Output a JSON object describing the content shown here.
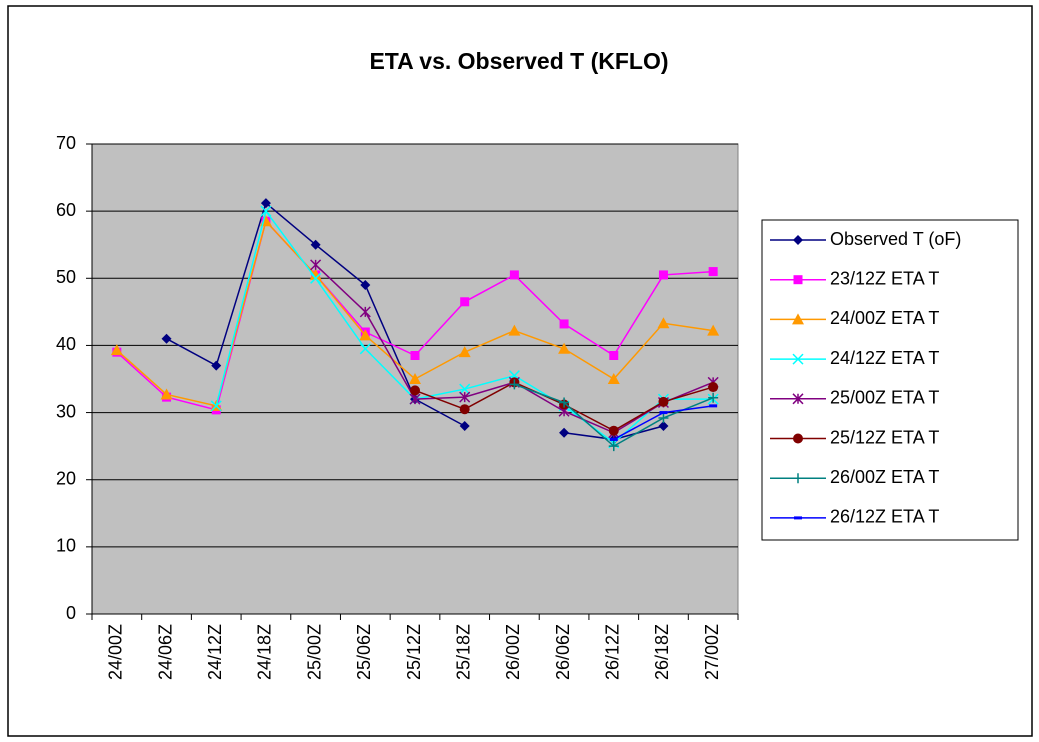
{
  "chart_data": {
    "type": "line",
    "title": "ETA vs. Observed T (KFLO)",
    "categories": [
      "24/00Z",
      "24/06Z",
      "24/12Z",
      "24/18Z",
      "25/00Z",
      "25/06Z",
      "25/12Z",
      "25/18Z",
      "26/00Z",
      "26/06Z",
      "26/12Z",
      "26/18Z",
      "27/00Z"
    ],
    "ylim": [
      0,
      70
    ],
    "yticks": [
      0,
      10,
      20,
      30,
      40,
      50,
      60,
      70
    ],
    "grid": true,
    "plot_background": "#c0c0c0",
    "legend": "right",
    "series": [
      {
        "name": "Observed T (oF)",
        "color": "#000080",
        "marker": "diamond",
        "values": [
          null,
          41,
          37,
          61.2,
          55,
          49,
          32,
          28,
          null,
          27,
          26,
          28,
          null
        ]
      },
      {
        "name": "23/12Z ETA T",
        "color": "#ff00ff",
        "marker": "square",
        "values": [
          39,
          32.3,
          30.4,
          58.5,
          50.5,
          42,
          38.5,
          46.5,
          50.5,
          43.2,
          38.5,
          50.5,
          51
        ]
      },
      {
        "name": "24/00Z ETA T",
        "color": "#ff9900",
        "marker": "triangle",
        "values": [
          39.3,
          32.7,
          31,
          58.5,
          50.5,
          41.5,
          35,
          39,
          42.2,
          39.5,
          35,
          43.3,
          42.2
        ]
      },
      {
        "name": "24/12Z ETA T",
        "color": "#00ffff",
        "marker": "x",
        "values": [
          null,
          null,
          31,
          60,
          50,
          39.5,
          32,
          33.5,
          35.5,
          31,
          25.5,
          32,
          32
        ]
      },
      {
        "name": "25/00Z ETA T",
        "color": "#800080",
        "marker": "star",
        "values": [
          null,
          null,
          null,
          null,
          52,
          45,
          32,
          32.3,
          34.5,
          30.2,
          27,
          31.5,
          34.5
        ]
      },
      {
        "name": "25/12Z ETA T",
        "color": "#800000",
        "marker": "circle",
        "values": [
          null,
          null,
          null,
          null,
          null,
          null,
          33.3,
          30.5,
          34.5,
          31.2,
          27.3,
          31.6,
          33.8
        ]
      },
      {
        "name": "26/00Z ETA T",
        "color": "#008080",
        "marker": "plus",
        "values": [
          null,
          null,
          null,
          null,
          null,
          null,
          null,
          null,
          34.2,
          31.5,
          25,
          29.2,
          32.2
        ]
      },
      {
        "name": "26/12Z ETA T",
        "color": "#0000ff",
        "marker": "dash",
        "values": [
          null,
          null,
          null,
          null,
          null,
          null,
          null,
          null,
          null,
          null,
          26,
          30,
          31
        ]
      }
    ]
  }
}
